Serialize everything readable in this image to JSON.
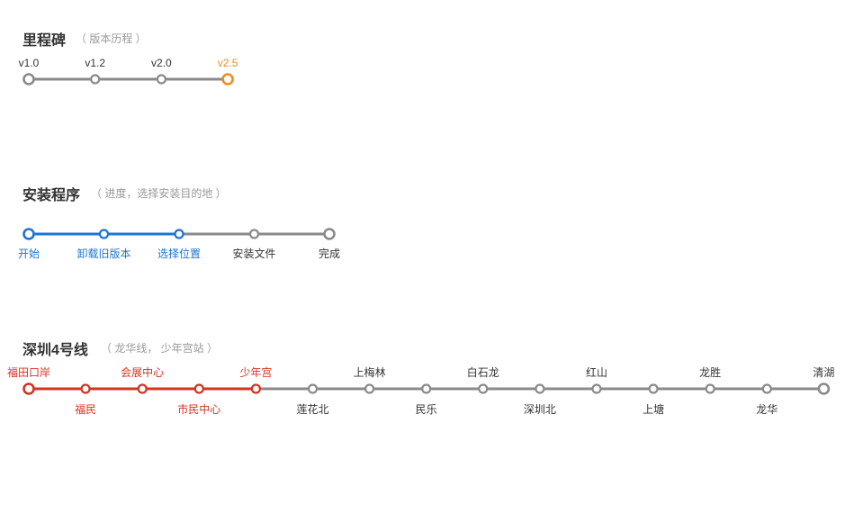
{
  "colors": {
    "gray": "#8a8a8a",
    "orange": "#f08a1c",
    "blue": "#1c74d2",
    "red": "#d7321f",
    "text": "#333333",
    "muted": "#999999"
  },
  "milestone": {
    "title": "里程碑",
    "subtitle": "（ 版本历程 ）",
    "active_index": 3,
    "accent": "orange",
    "fill_line": false,
    "steps": [
      {
        "label": "v1.0"
      },
      {
        "label": "v1.2"
      },
      {
        "label": "v2.0"
      },
      {
        "label": "v2.5"
      }
    ]
  },
  "installer": {
    "title": "安装程序",
    "subtitle": "（ 进度，选择安装目的地 ）",
    "active_index": 2,
    "accent": "blue",
    "fill_line": true,
    "steps": [
      {
        "label": "开始"
      },
      {
        "label": "卸载旧版本"
      },
      {
        "label": "选择位置"
      },
      {
        "label": "安装文件"
      },
      {
        "label": "完成"
      }
    ]
  },
  "metro": {
    "title": "深圳4号线",
    "subtitle": "（ 龙华线， 少年宫站 ）",
    "active_index": 4,
    "accent": "red",
    "fill_line": true,
    "steps": [
      {
        "label": "福田口岸"
      },
      {
        "label": "福民"
      },
      {
        "label": "会展中心"
      },
      {
        "label": "市民中心"
      },
      {
        "label": "少年宫"
      },
      {
        "label": "莲花北"
      },
      {
        "label": "上梅林"
      },
      {
        "label": "民乐"
      },
      {
        "label": "白石龙"
      },
      {
        "label": "深圳北"
      },
      {
        "label": "红山"
      },
      {
        "label": "上塘"
      },
      {
        "label": "龙胜"
      },
      {
        "label": "龙华"
      },
      {
        "label": "清湖"
      }
    ]
  }
}
